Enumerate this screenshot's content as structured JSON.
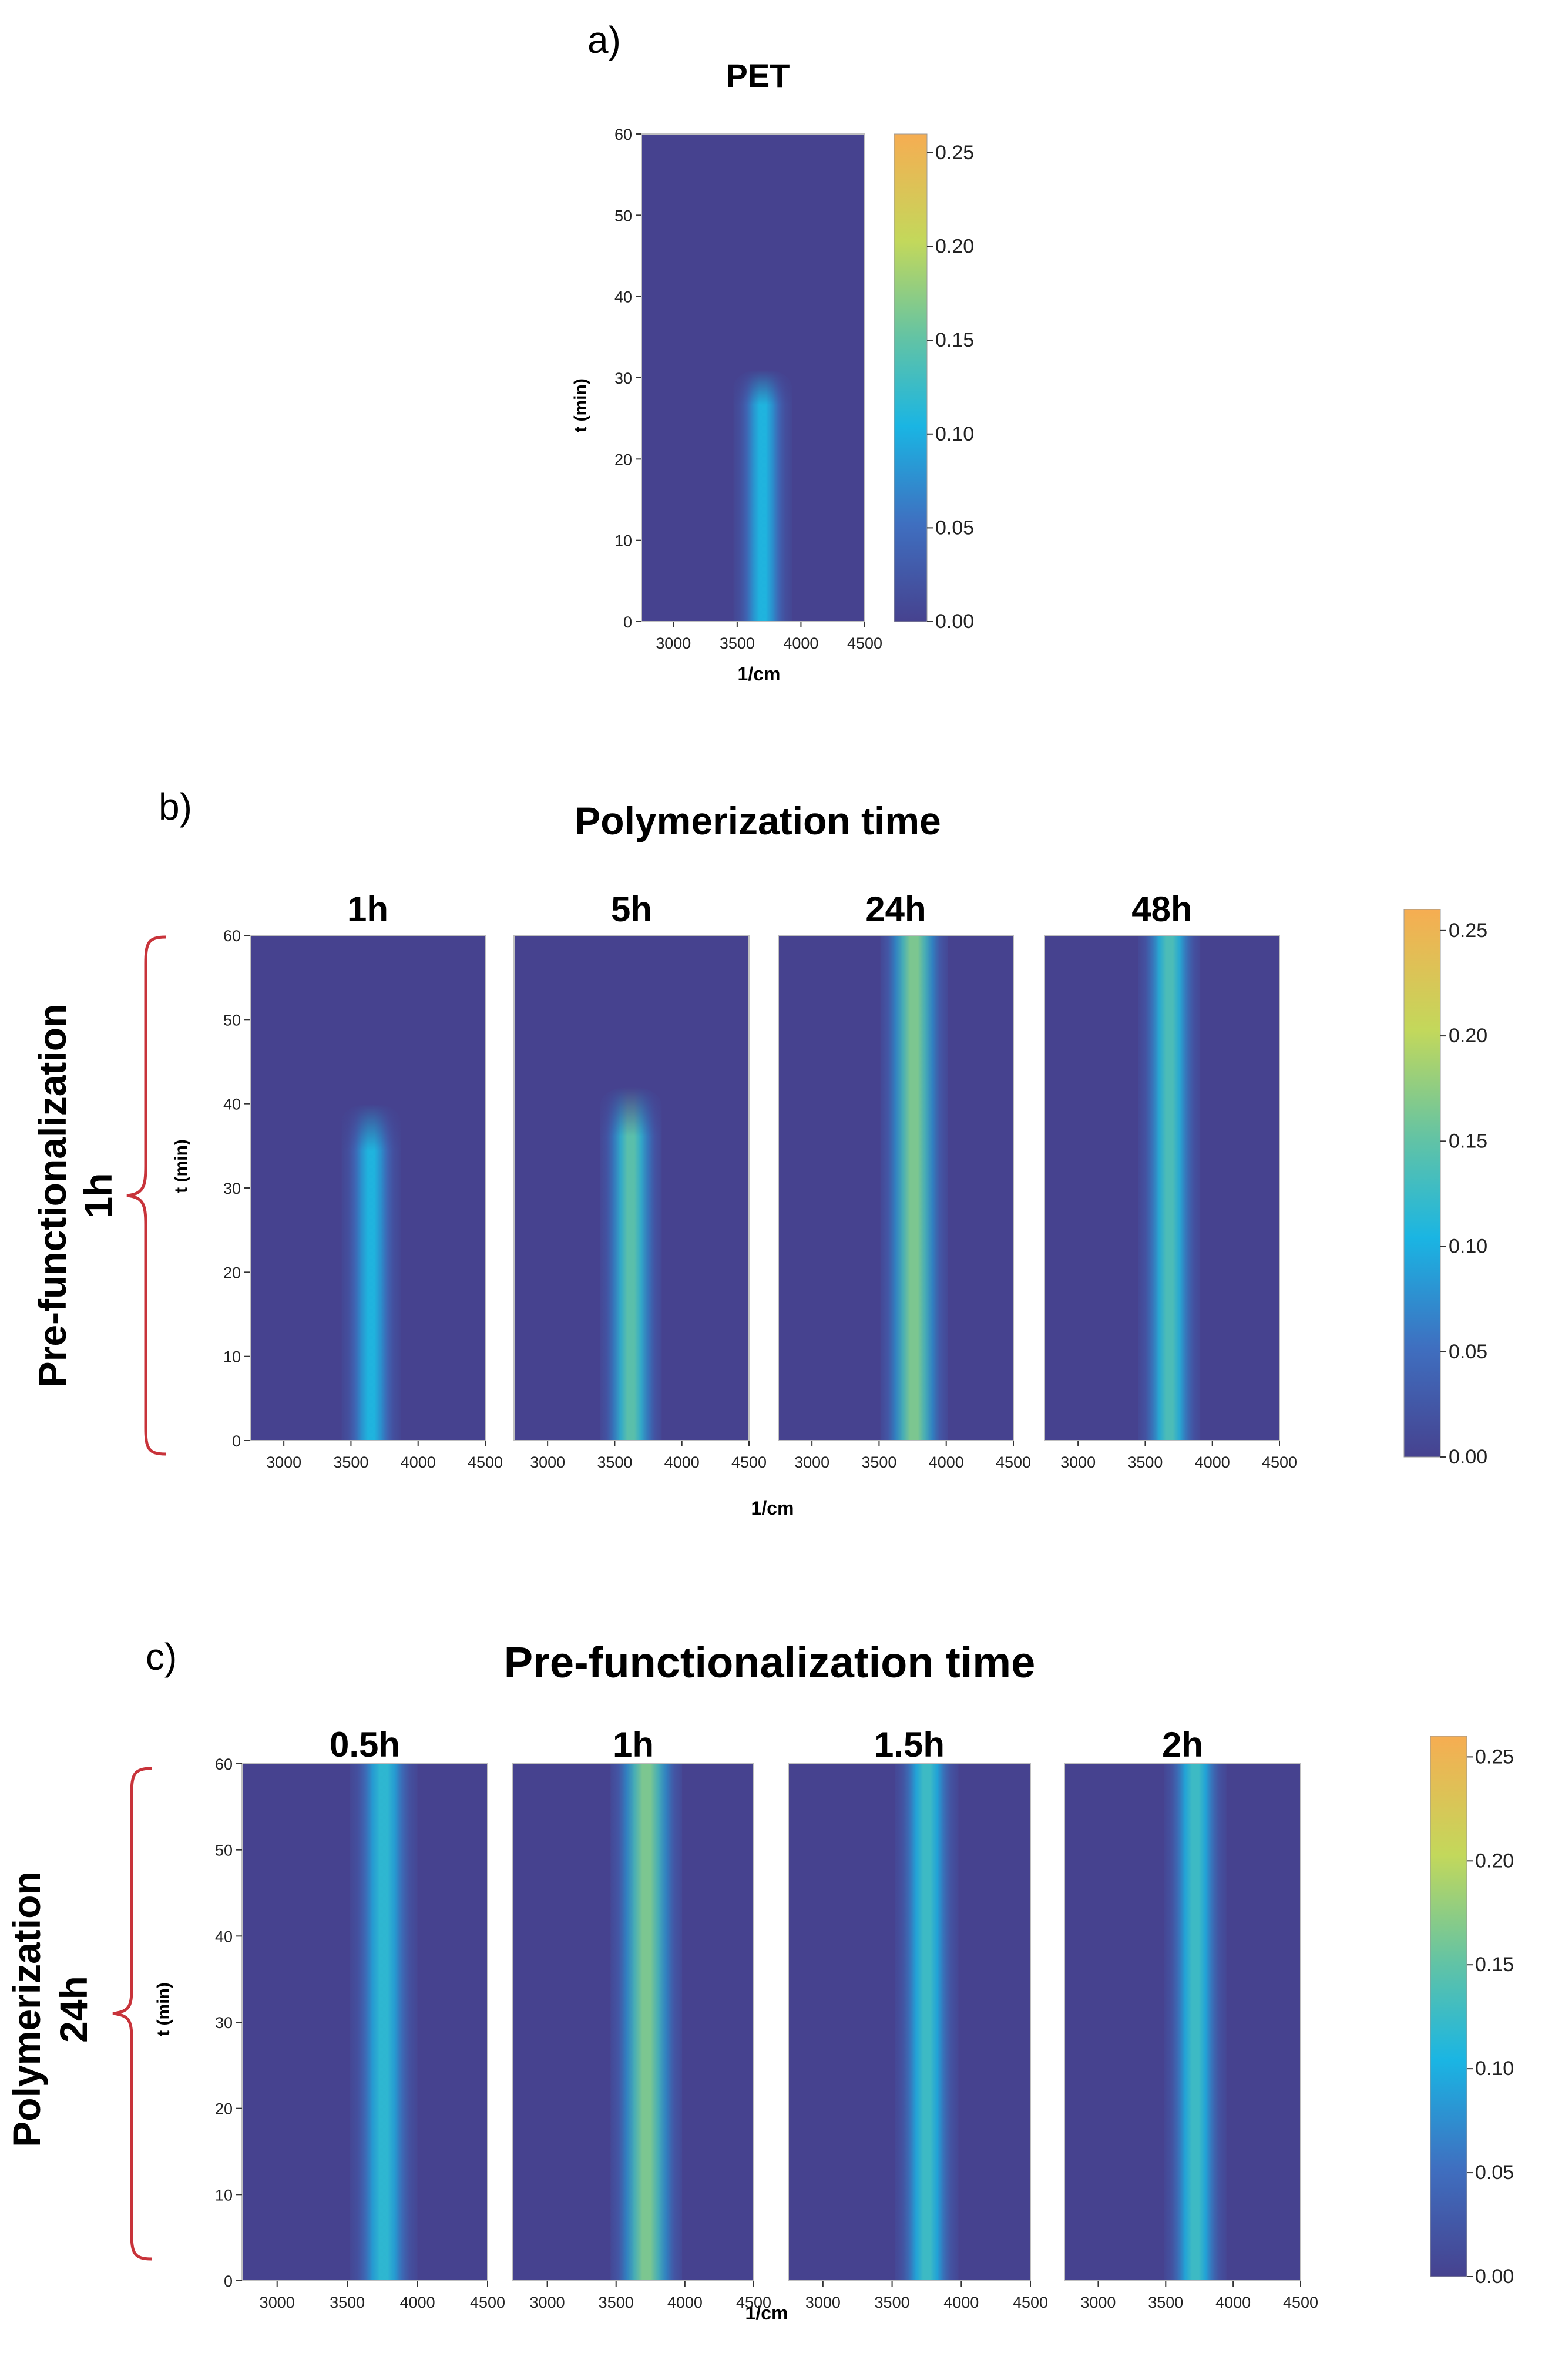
{
  "figure": {
    "panel_a": {
      "letter": "a)",
      "title": "PET",
      "xlabel": "1/cm",
      "ylabel": "t (min)"
    },
    "panel_b": {
      "letter": "b)",
      "title": "Polymerization time",
      "side_label_line1": "Pre-functionalization",
      "side_label_line2": "1h",
      "xlabel": "1/cm",
      "ylabel": "t (min)"
    },
    "panel_c": {
      "letter": "c)",
      "title": "Pre-functionalization time",
      "side_label_line1": "Polymerization",
      "side_label_line2": "24h",
      "xlabel": "1/cm",
      "ylabel": "t (min)"
    }
  },
  "colors": {
    "low": "#46428f",
    "mid_low": "#3f6fc0",
    "mid": "#1ab5e3",
    "mid_high": "#62c3a5",
    "high_mid": "#c3d85b",
    "high": "#f6ad52",
    "bracket": "#c8333a"
  },
  "chart_data": [
    {
      "id": "a-PET",
      "type": "heatmap",
      "title": "PET",
      "x_range": [
        2750,
        4500
      ],
      "y_range": [
        0,
        60
      ],
      "x_ticks": [
        3000,
        3500,
        4000,
        4500
      ],
      "y_ticks": [
        0,
        10,
        20,
        30,
        40,
        50,
        60
      ],
      "xlabel": "1/cm",
      "ylabel": "t (min)",
      "band": {
        "center": 3700,
        "half_width": 230,
        "peak": 0.11,
        "t_extent": 31
      },
      "colorbar": {
        "min": 0,
        "max": 0.26,
        "ticks": [
          0.0,
          0.05,
          0.1,
          0.15,
          0.2,
          0.25
        ]
      }
    },
    {
      "id": "b-1h",
      "type": "heatmap",
      "title": "1h",
      "x_range": [
        2750,
        4500
      ],
      "y_range": [
        0,
        60
      ],
      "x_ticks": [
        3000,
        3500,
        4000,
        4500
      ],
      "y_ticks": [
        0,
        10,
        20,
        30,
        40,
        50,
        60
      ],
      "band": {
        "center": 3650,
        "half_width": 220,
        "peak": 0.11,
        "t_extent": 40
      }
    },
    {
      "id": "b-5h",
      "type": "heatmap",
      "title": "5h",
      "x_range": [
        2750,
        4500
      ],
      "y_range": [
        0,
        60
      ],
      "x_ticks": [
        3000,
        3500,
        4000,
        4500
      ],
      "band": {
        "center": 3620,
        "half_width": 230,
        "peak": 0.15,
        "t_extent": 42
      }
    },
    {
      "id": "b-24h",
      "type": "heatmap",
      "title": "24h",
      "x_range": [
        2750,
        4500
      ],
      "y_range": [
        0,
        60
      ],
      "x_ticks": [
        3000,
        3500,
        4000,
        4500
      ],
      "band": {
        "center": 3760,
        "half_width": 250,
        "peak": 0.17,
        "t_extent": 65
      }
    },
    {
      "id": "b-48h",
      "type": "heatmap",
      "title": "48h",
      "x_range": [
        2750,
        4500
      ],
      "y_range": [
        0,
        60
      ],
      "x_ticks": [
        3000,
        3500,
        4000,
        4500
      ],
      "band": {
        "center": 3680,
        "half_width": 230,
        "peak": 0.14,
        "t_extent": 200
      }
    },
    {
      "id": "c-0.5h",
      "type": "heatmap",
      "title": "0.5h",
      "x_range": [
        2750,
        4500
      ],
      "y_range": [
        0,
        60
      ],
      "x_ticks": [
        3000,
        3500,
        4000,
        4500
      ],
      "y_ticks": [
        0,
        10,
        20,
        30,
        40,
        50,
        60
      ],
      "band": {
        "center": 3760,
        "half_width": 240,
        "peak": 0.12,
        "t_extent": 75
      }
    },
    {
      "id": "c-1h",
      "type": "heatmap",
      "title": "1h",
      "x_range": [
        2750,
        4500
      ],
      "y_range": [
        0,
        60
      ],
      "x_ticks": [
        3000,
        3500,
        4000,
        4500
      ],
      "band": {
        "center": 3720,
        "half_width": 260,
        "peak": 0.17,
        "t_extent": 72
      }
    },
    {
      "id": "c-1.5h",
      "type": "heatmap",
      "title": "1.5h",
      "x_range": [
        2750,
        4500
      ],
      "y_range": [
        0,
        60
      ],
      "x_ticks": [
        3000,
        3500,
        4000,
        4500
      ],
      "band": {
        "center": 3750,
        "half_width": 230,
        "peak": 0.13,
        "t_extent": 200
      }
    },
    {
      "id": "c-2h",
      "type": "heatmap",
      "title": "2h",
      "x_range": [
        2750,
        4500
      ],
      "y_range": [
        0,
        60
      ],
      "x_ticks": [
        3000,
        3500,
        4000,
        4500
      ],
      "band": {
        "center": 3720,
        "half_width": 230,
        "peak": 0.13,
        "t_extent": 200
      }
    }
  ],
  "colorbars": [
    {
      "id": "cb-a",
      "min": 0,
      "max": 0.26,
      "ticks": [
        "0.00",
        "0.05",
        "0.10",
        "0.15",
        "0.20",
        "0.25"
      ]
    },
    {
      "id": "cb-b",
      "min": 0,
      "max": 0.26,
      "ticks": [
        "0.00",
        "0.05",
        "0.10",
        "0.15",
        "0.20",
        "0.25"
      ]
    },
    {
      "id": "cb-c",
      "min": 0,
      "max": 0.26,
      "ticks": [
        "0.00",
        "0.05",
        "0.10",
        "0.15",
        "0.20",
        "0.25"
      ]
    }
  ]
}
